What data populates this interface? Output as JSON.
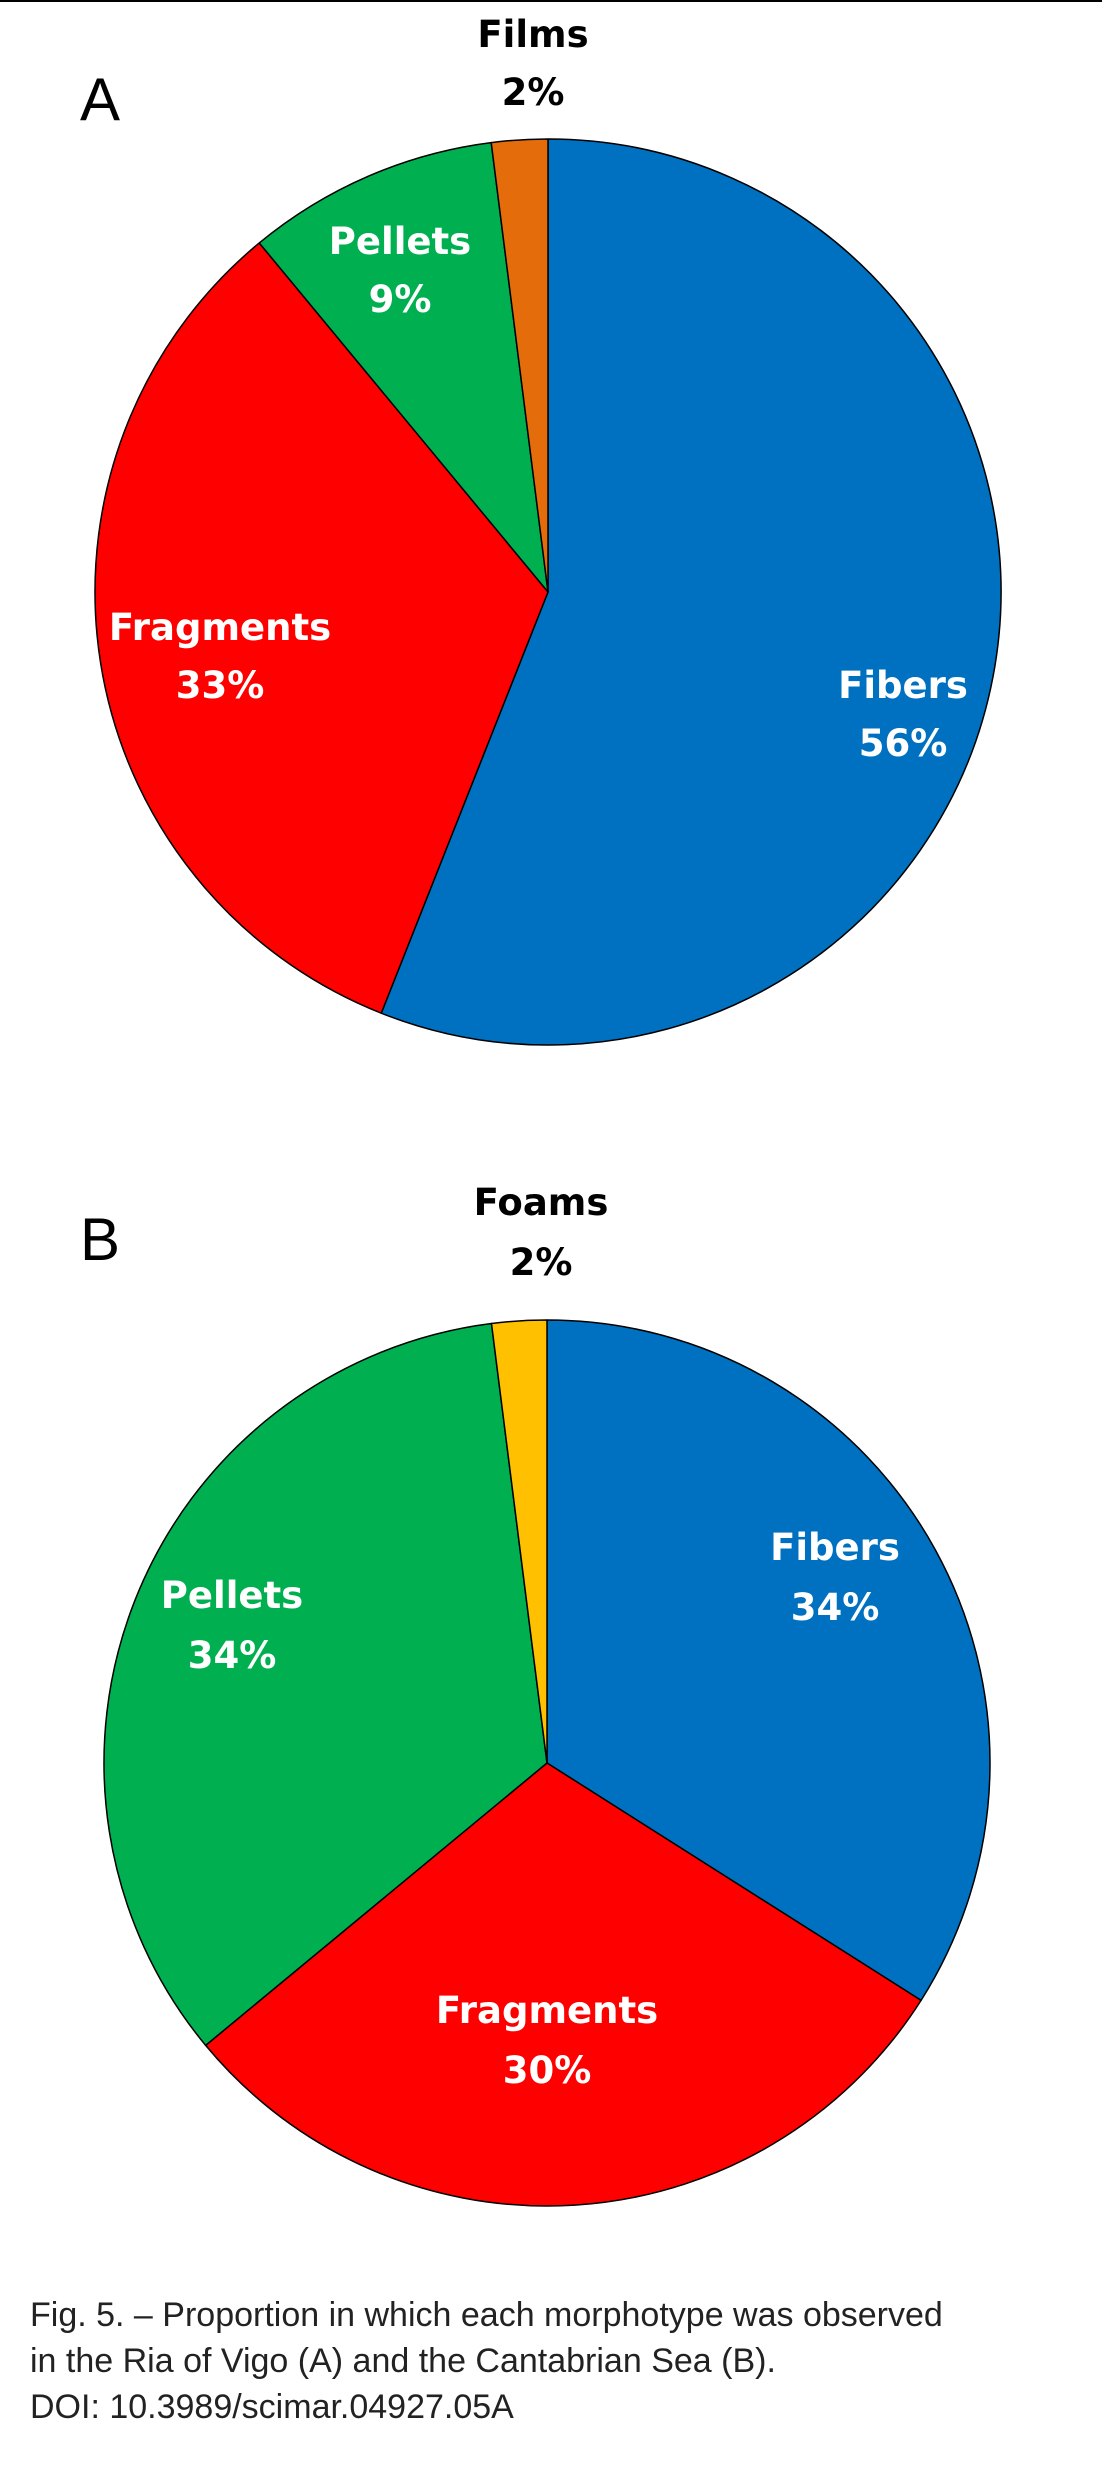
{
  "chart_data": [
    {
      "type": "pie",
      "panel_label": "A",
      "slices": [
        {
          "label": "Fibers",
          "value": 56,
          "value_label": "56%",
          "color": "#0070C0",
          "label_color": "#ffffff"
        },
        {
          "label": "Fragments",
          "value": 33,
          "value_label": "33%",
          "color": "#FF0000",
          "label_color": "#ffffff"
        },
        {
          "label": "Pellets",
          "value": 9,
          "value_label": "9%",
          "color": "#00B050",
          "label_color": "#ffffff"
        },
        {
          "label": "Films",
          "value": 2,
          "value_label": "2%",
          "color": "#E46C0A",
          "label_color": "#000000"
        }
      ]
    },
    {
      "type": "pie",
      "panel_label": "B",
      "slices": [
        {
          "label": "Fibers",
          "value": 34,
          "value_label": "34%",
          "color": "#0070C0",
          "label_color": "#ffffff"
        },
        {
          "label": "Fragments",
          "value": 30,
          "value_label": "30%",
          "color": "#FF0000",
          "label_color": "#ffffff"
        },
        {
          "label": "Pellets",
          "value": 34,
          "value_label": "34%",
          "color": "#00B050",
          "label_color": "#ffffff"
        },
        {
          "label": "Foams",
          "value": 2,
          "value_label": "2%",
          "color": "#FFC000",
          "label_color": "#000000"
        }
      ]
    }
  ],
  "caption": {
    "line1": "Fig. 5. – Proportion in which each morphotype was observed",
    "line2": "in the Ria of Vigo (A) and the Cantabrian Sea (B).",
    "line3": "DOI: 10.3989/scimar.04927.05A"
  }
}
